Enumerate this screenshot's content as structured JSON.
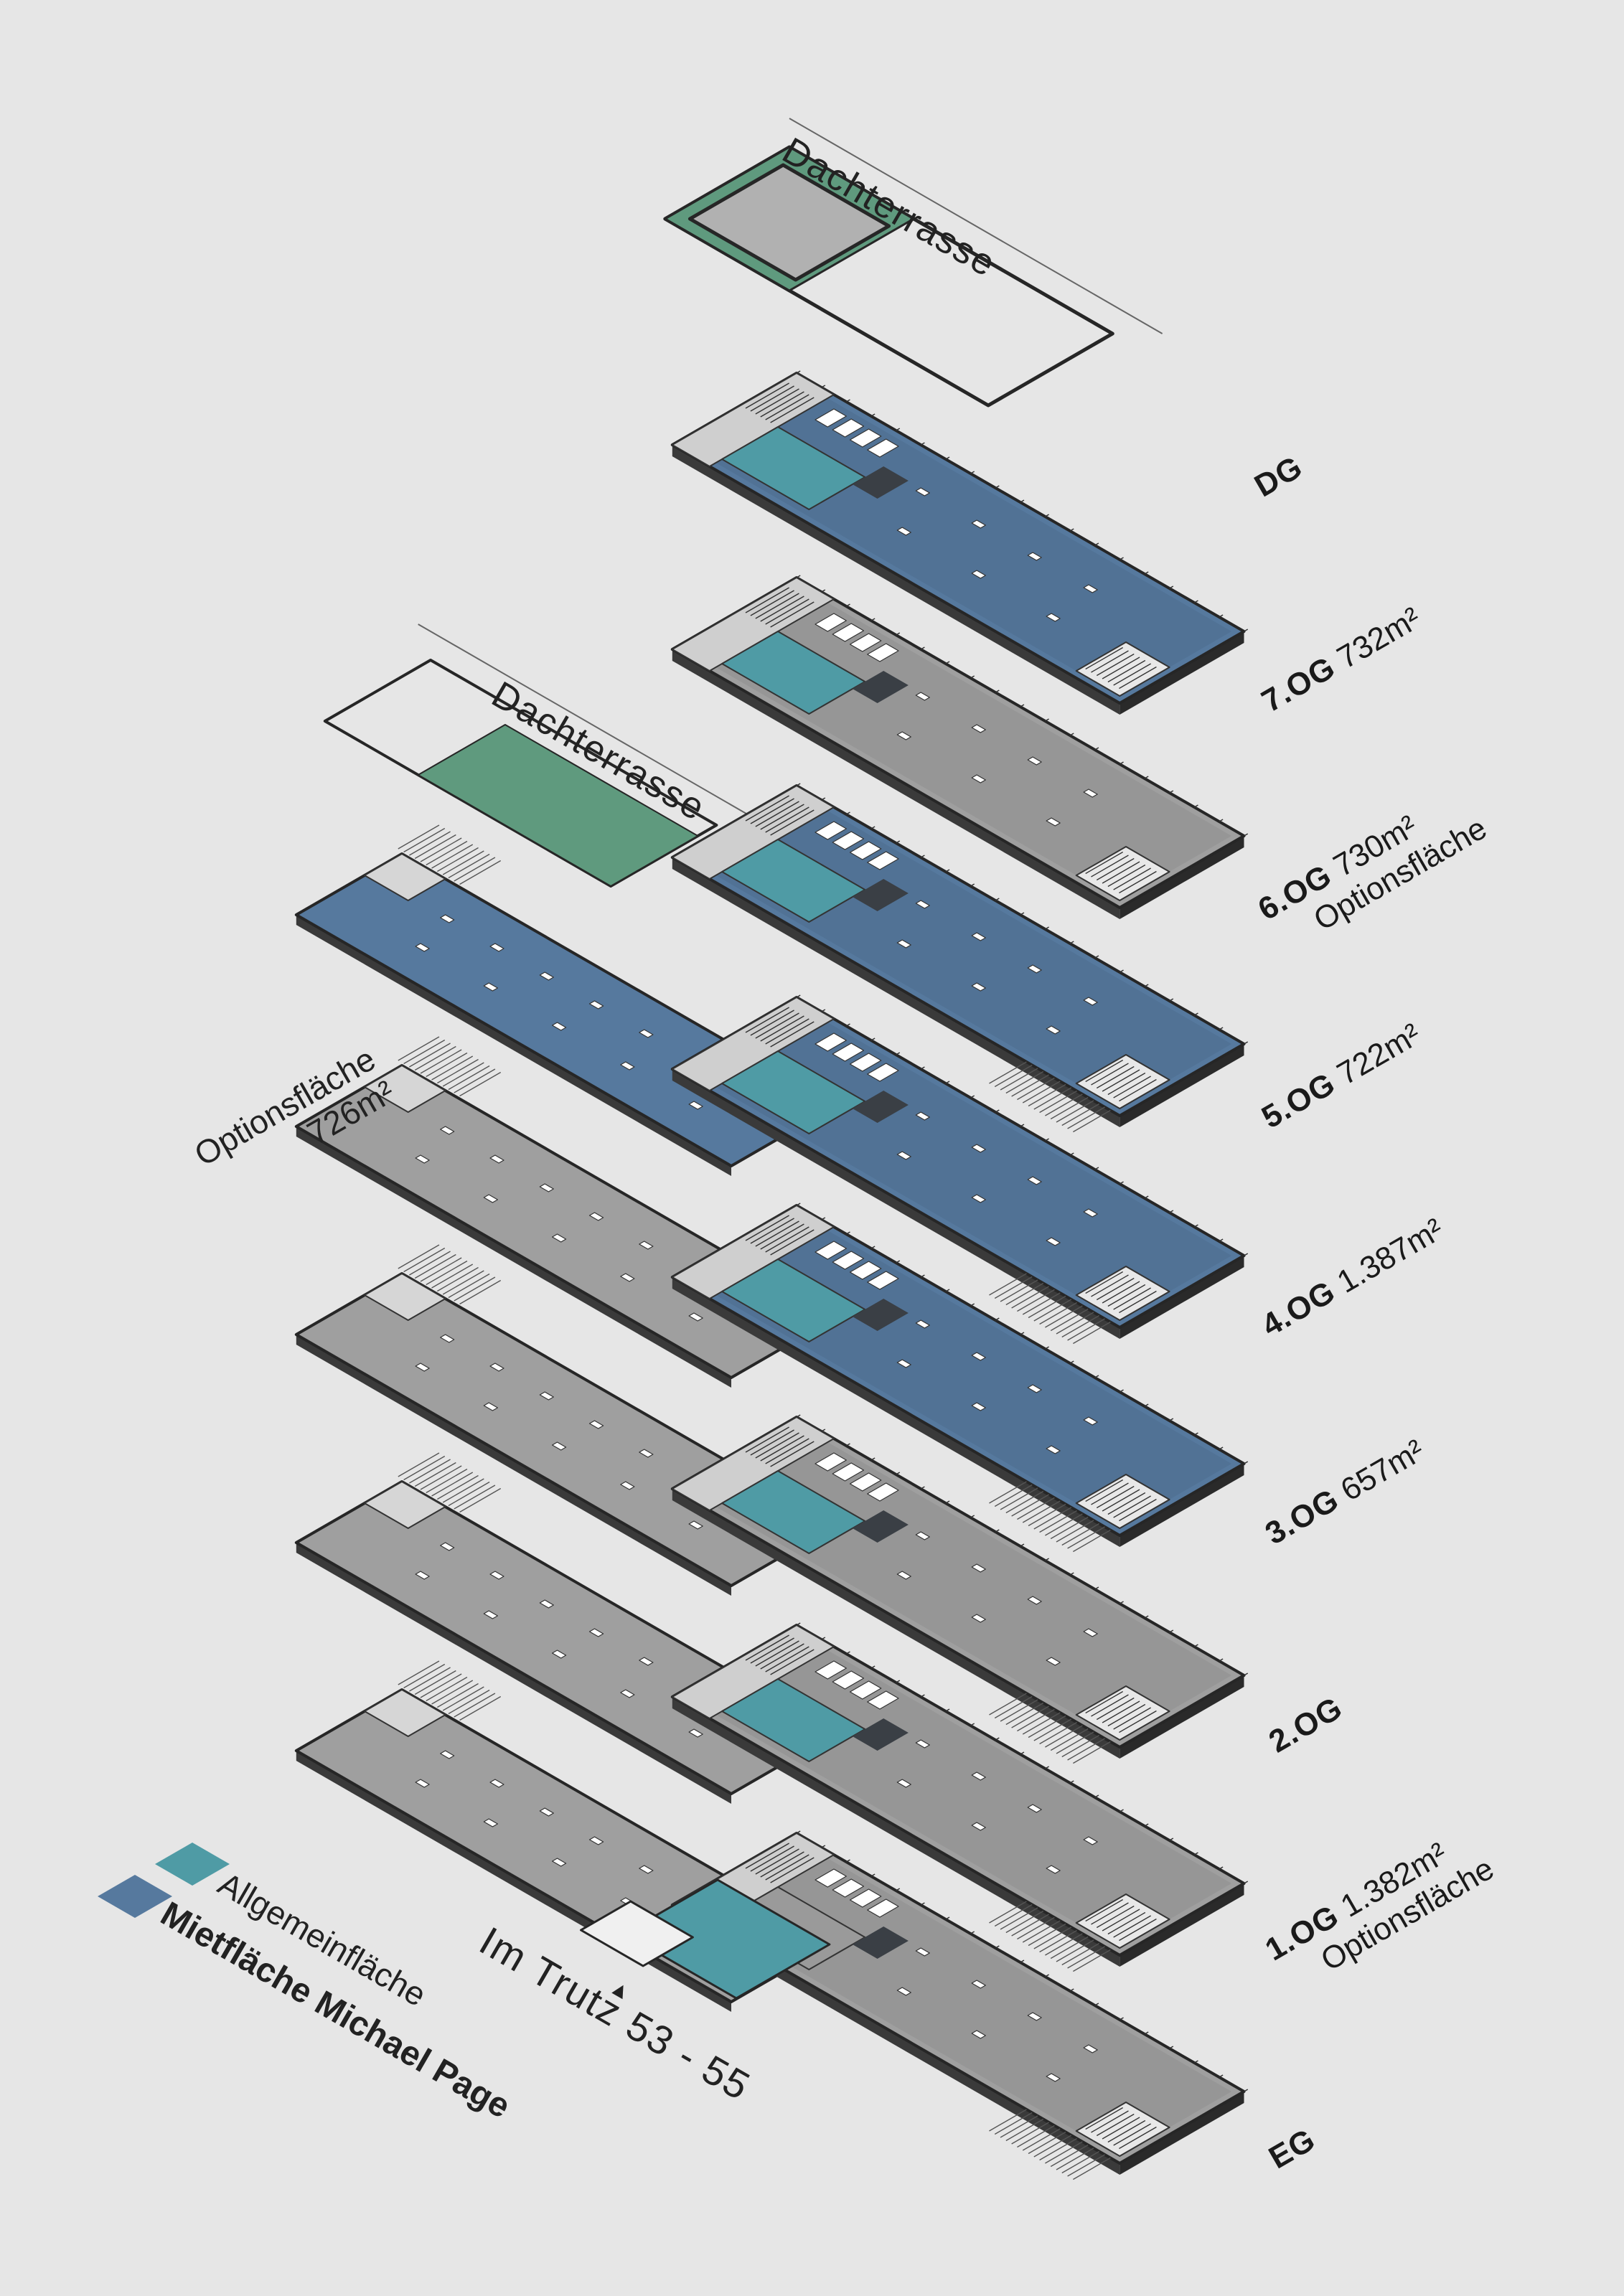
{
  "colors": {
    "background": "#e6e6e6",
    "rental_area": "#56799e",
    "rental_area_dark": "#4a6b8f",
    "common_area": "#4f9ba5",
    "option_area": "#9f9f9f",
    "roof_terrace": "#5f9a7e",
    "core": "#3a3f45",
    "outline": "#262626"
  },
  "floors": [
    {
      "id": "dg",
      "name": "DG",
      "area": "",
      "option": ""
    },
    {
      "id": "7og",
      "name": "7.OG",
      "area": "732m²",
      "option": ""
    },
    {
      "id": "6og",
      "name": "6.OG",
      "area": "730m²",
      "option": "Optionsfläche"
    },
    {
      "id": "5og",
      "name": "5.OG",
      "area": "722m²",
      "option": ""
    },
    {
      "id": "4og",
      "name": "4.OG",
      "area": "1.387m²",
      "option": ""
    },
    {
      "id": "3og",
      "name": "3.OG",
      "area": "657m²",
      "option": ""
    },
    {
      "id": "2og",
      "name": "2.OG",
      "area": "",
      "option": ""
    },
    {
      "id": "1og",
      "name": "1.OG",
      "area": "1.382m²",
      "option": "Optionsfläche"
    },
    {
      "id": "eg",
      "name": "EG",
      "area": "",
      "option": ""
    }
  ],
  "annotations": {
    "roof_terrace_top": "Dachterrasse",
    "roof_terrace_mid": "Dachterrasse",
    "wing_option_line1": "Optionsfläche",
    "wing_option_line2": "726m²",
    "entrance_arrow": "▲",
    "address": "Im Trutz 53 - 55"
  },
  "legend": {
    "common_label": "Allgemeinfläche",
    "rental_label": "Mietfläche Michael Page"
  }
}
